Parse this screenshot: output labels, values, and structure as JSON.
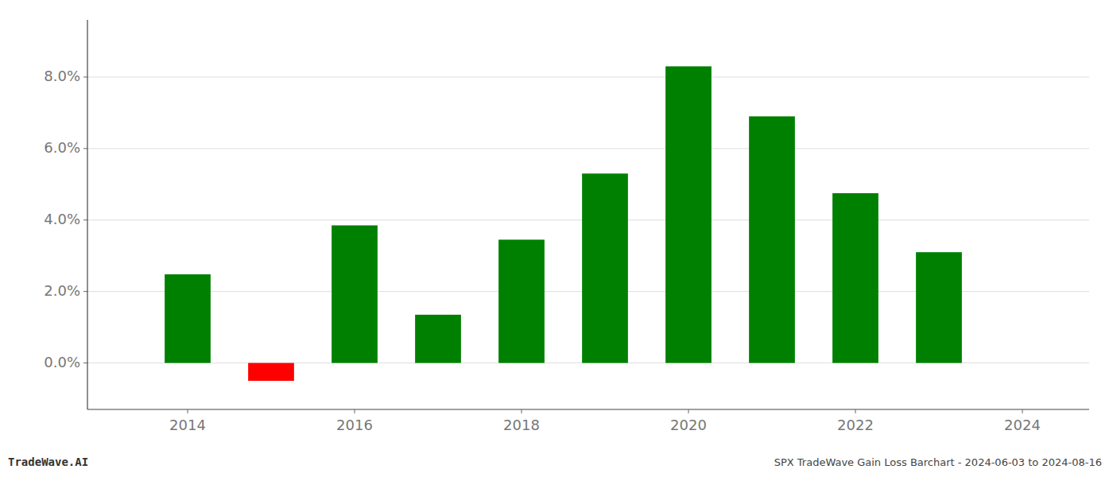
{
  "chart_data": {
    "type": "bar",
    "title": "SPX TradeWave Gain Loss Barchart - 2024-06-03 to 2024-08-16",
    "annotations": [
      "TradeWave.AI"
    ],
    "x": [
      2014,
      2015,
      2016,
      2017,
      2018,
      2019,
      2020,
      2021,
      2022,
      2023
    ],
    "values": [
      0.0248,
      -0.005,
      0.0385,
      0.0135,
      0.0345,
      0.053,
      0.083,
      0.069,
      0.0475,
      0.031
    ],
    "colors": [
      "#008000",
      "#ff0000",
      "#008000",
      "#008000",
      "#008000",
      "#008000",
      "#008000",
      "#008000",
      "#008000",
      "#008000"
    ],
    "xlim": [
      2012.8,
      2024.8
    ],
    "xticks": [
      2014,
      2016,
      2018,
      2020,
      2022,
      2024
    ],
    "ylim": [
      -0.013,
      0.096
    ],
    "yticks": [
      {
        "value": 0.0,
        "label": "0.0%"
      },
      {
        "value": 0.02,
        "label": "2.0%"
      },
      {
        "value": 0.04,
        "label": "4.0%"
      },
      {
        "value": 0.06,
        "label": "6.0%"
      },
      {
        "value": 0.08,
        "label": "8.0%"
      }
    ],
    "grid": true
  }
}
